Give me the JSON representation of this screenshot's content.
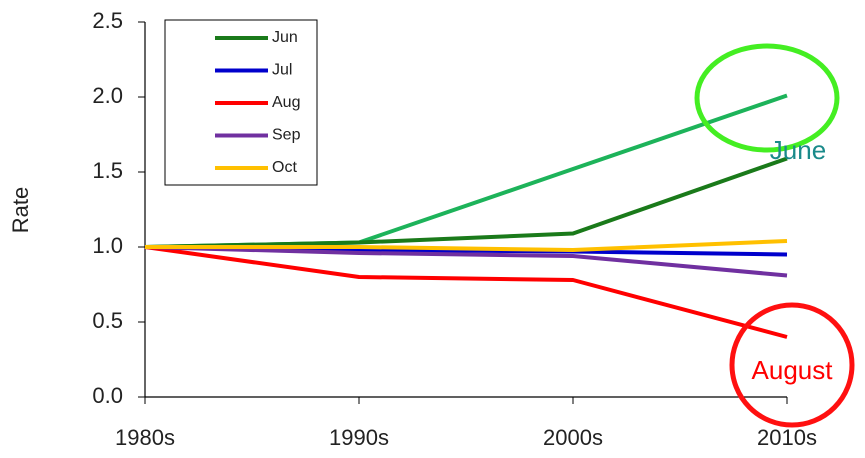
{
  "chart_data": {
    "type": "line",
    "y_label": "Rate",
    "categories": [
      "1980s",
      "1990s",
      "2000s",
      "2010s"
    ],
    "series": [
      {
        "color": "#1db35a",
        "values": [
          1.0,
          1.03,
          1.52,
          2.01
        ]
      },
      {
        "name": "Jun",
        "color": "#1a7a1a",
        "values": [
          1.0,
          1.03,
          1.09,
          1.59
        ]
      },
      {
        "name": "Jul",
        "color": "#0000cc",
        "values": [
          1.0,
          0.98,
          0.97,
          0.95
        ]
      },
      {
        "name": "Aug",
        "color": "#ff0000",
        "values": [
          1.0,
          0.8,
          0.78,
          0.4
        ]
      },
      {
        "name": "Sep",
        "color": "#7030a0",
        "values": [
          1.0,
          0.96,
          0.94,
          0.81
        ]
      },
      {
        "name": "Oct",
        "color": "#ffc000",
        "values": [
          1.0,
          1.0,
          0.98,
          1.04
        ]
      }
    ],
    "ylim": [
      0,
      2.5
    ],
    "yticks": [
      {
        "value": 0,
        "label": "0.0"
      },
      {
        "value": 0.5,
        "label": "0.5"
      },
      {
        "value": 1,
        "label": "1.0"
      },
      {
        "value": 1.5,
        "label": "1.5"
      },
      {
        "value": 2,
        "label": "2.0"
      },
      {
        "value": 2.5,
        "label": "2.5"
      }
    ],
    "grid": false,
    "annotations": [
      {
        "text": "June",
        "color": "#1a8a8a"
      },
      {
        "text": "August",
        "color": "#ff0000"
      }
    ]
  }
}
